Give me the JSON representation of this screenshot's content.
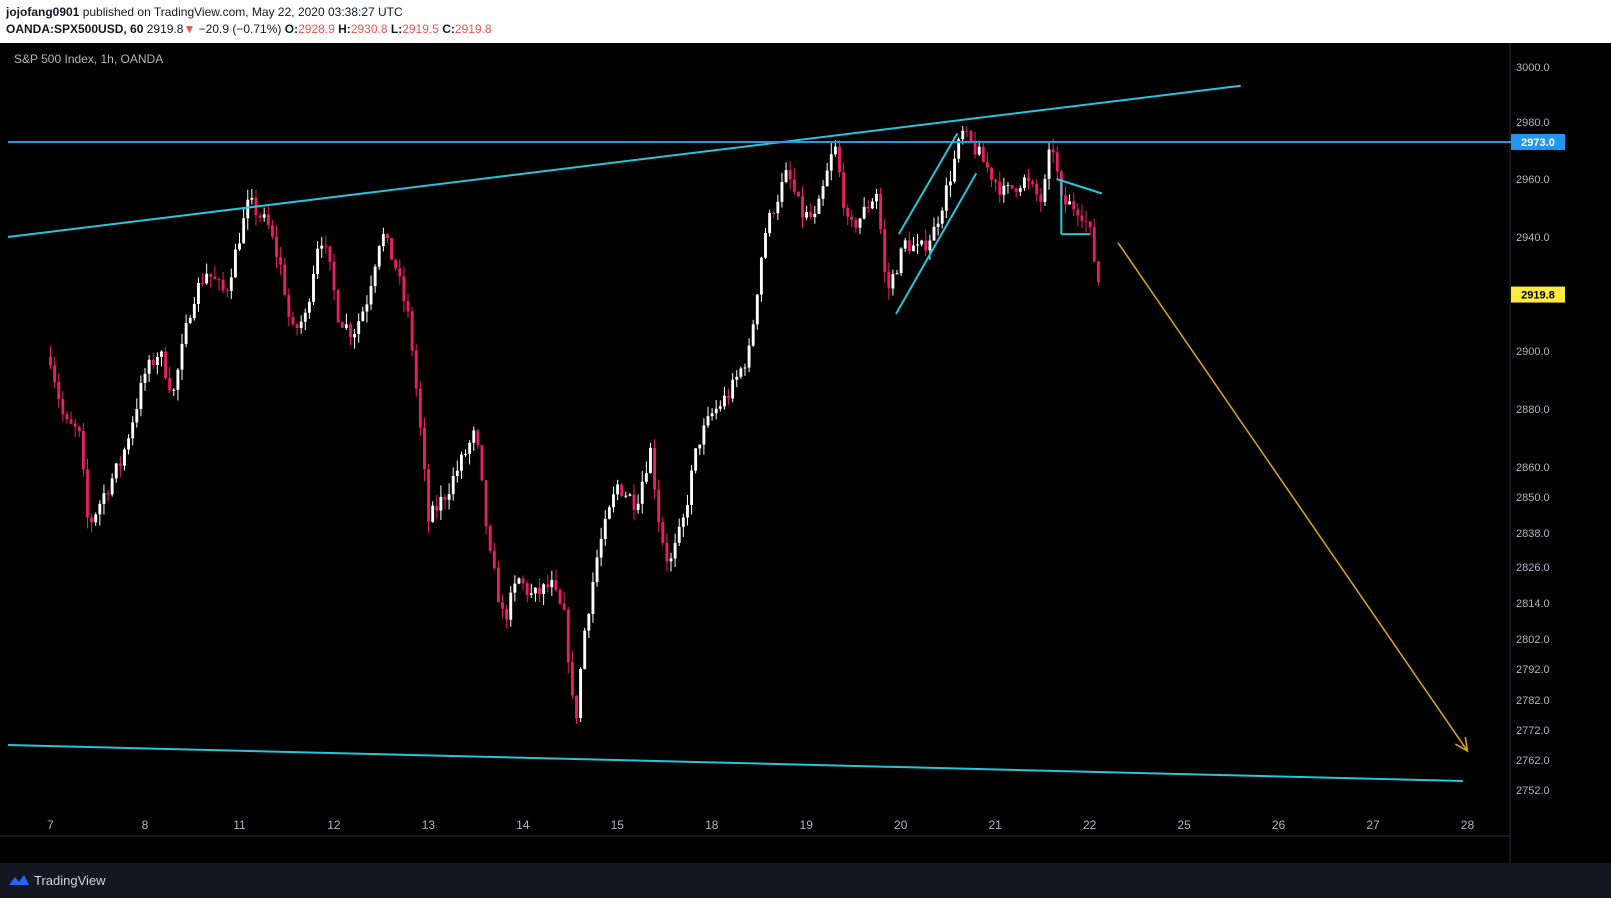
{
  "header": {
    "author": "jojofang0901",
    "published_text": "published on TradingView.com, May 22, 2020 03:38:27 UTC",
    "symbol": "OANDA:SPX500USD, 60",
    "last_price": "2919.8",
    "change_arrow": "▼",
    "change": "−20.9 (−0.71%)",
    "open_label": "O:",
    "open": "2928.9",
    "high_label": "H:",
    "high": "2930.8",
    "low_label": "L:",
    "low": "2919.5",
    "close_label": "C:",
    "close": "2919.8"
  },
  "footer": {
    "brand": "TradingView",
    "logo_icon": "tradingview-logo-icon"
  },
  "chart_data": {
    "type": "candlestick",
    "title": "S&P 500 Index, 1h, OANDA",
    "y_ticks": [
      3000.0,
      2980.0,
      2960.0,
      2940.0,
      2900.0,
      2880.0,
      2860.0,
      2850.0,
      2838.0,
      2826.0,
      2814.0,
      2802.0,
      2792.0,
      2782.0,
      2772.0,
      2762.0,
      2752.0
    ],
    "y_tick_labels": [
      "3000.0",
      "2980.0",
      "2960.0",
      "2940.0",
      "2900.0",
      "2880.0",
      "2860.0",
      "2850.0",
      "2838.0",
      "2826.0",
      "2814.0",
      "2802.0",
      "2792.0",
      "2782.0",
      "2772.0",
      "2762.0",
      "2752.0"
    ],
    "x_ticks": [
      0,
      1,
      2,
      3,
      4,
      5,
      6,
      7,
      8,
      9,
      10,
      11,
      12,
      13,
      14,
      15
    ],
    "x_tick_labels": [
      "7",
      "8",
      "11",
      "12",
      "13",
      "14",
      "15",
      "18",
      "19",
      "20",
      "21",
      "22",
      "25",
      "26",
      "27",
      "28"
    ],
    "xlim": [
      -0.45,
      15.45
    ],
    "price_marks": [
      {
        "value": 2973.0,
        "label": "2973.0",
        "color": "#2196f3",
        "text_color": "#ffffff"
      },
      {
        "value": 2919.8,
        "label": "2919.8",
        "color": "#ffeb3b",
        "text_color": "#000000"
      }
    ],
    "key_points": [
      {
        "x": 0.0,
        "y": 2898
      },
      {
        "x": 0.05,
        "y": 2890
      },
      {
        "x": 0.15,
        "y": 2875
      },
      {
        "x": 0.3,
        "y": 2872
      },
      {
        "x": 0.4,
        "y": 2840
      },
      {
        "x": 0.55,
        "y": 2850
      },
      {
        "x": 0.75,
        "y": 2862
      },
      {
        "x": 1.0,
        "y": 2892
      },
      {
        "x": 1.15,
        "y": 2900
      },
      {
        "x": 1.3,
        "y": 2885
      },
      {
        "x": 1.5,
        "y": 2918
      },
      {
        "x": 1.65,
        "y": 2928
      },
      {
        "x": 1.85,
        "y": 2920
      },
      {
        "x": 2.0,
        "y": 2940
      },
      {
        "x": 2.1,
        "y": 2952
      },
      {
        "x": 2.3,
        "y": 2944
      },
      {
        "x": 2.45,
        "y": 2928
      },
      {
        "x": 2.55,
        "y": 2906
      },
      {
        "x": 2.7,
        "y": 2912
      },
      {
        "x": 2.85,
        "y": 2942
      },
      {
        "x": 2.95,
        "y": 2930
      },
      {
        "x": 3.05,
        "y": 2912
      },
      {
        "x": 3.2,
        "y": 2906
      },
      {
        "x": 3.35,
        "y": 2918
      },
      {
        "x": 3.5,
        "y": 2942
      },
      {
        "x": 3.65,
        "y": 2930
      },
      {
        "x": 3.8,
        "y": 2910
      },
      {
        "x": 3.9,
        "y": 2878
      },
      {
        "x": 4.0,
        "y": 2842
      },
      {
        "x": 4.2,
        "y": 2852
      },
      {
        "x": 4.35,
        "y": 2862
      },
      {
        "x": 4.5,
        "y": 2872
      },
      {
        "x": 4.65,
        "y": 2830
      },
      {
        "x": 4.8,
        "y": 2808
      },
      {
        "x": 4.95,
        "y": 2822
      },
      {
        "x": 5.1,
        "y": 2816
      },
      {
        "x": 5.3,
        "y": 2820
      },
      {
        "x": 5.45,
        "y": 2808
      },
      {
        "x": 5.55,
        "y": 2772
      },
      {
        "x": 5.65,
        "y": 2804
      },
      {
        "x": 5.8,
        "y": 2832
      },
      {
        "x": 6.0,
        "y": 2854
      },
      {
        "x": 6.2,
        "y": 2848
      },
      {
        "x": 6.35,
        "y": 2866
      },
      {
        "x": 6.45,
        "y": 2840
      },
      {
        "x": 6.55,
        "y": 2826
      },
      {
        "x": 6.7,
        "y": 2842
      },
      {
        "x": 6.85,
        "y": 2868
      },
      {
        "x": 7.0,
        "y": 2878
      },
      {
        "x": 7.2,
        "y": 2886
      },
      {
        "x": 7.4,
        "y": 2900
      },
      {
        "x": 7.55,
        "y": 2940
      },
      {
        "x": 7.65,
        "y": 2950
      },
      {
        "x": 7.8,
        "y": 2962
      },
      {
        "x": 7.95,
        "y": 2948
      },
      {
        "x": 8.1,
        "y": 2946
      },
      {
        "x": 8.3,
        "y": 2972
      },
      {
        "x": 8.45,
        "y": 2942
      },
      {
        "x": 8.6,
        "y": 2948
      },
      {
        "x": 8.75,
        "y": 2956
      },
      {
        "x": 8.85,
        "y": 2920
      },
      {
        "x": 9.05,
        "y": 2938
      },
      {
        "x": 9.2,
        "y": 2935
      },
      {
        "x": 9.35,
        "y": 2942
      },
      {
        "x": 9.5,
        "y": 2958
      },
      {
        "x": 9.65,
        "y": 2976
      },
      {
        "x": 9.8,
        "y": 2970
      },
      {
        "x": 9.95,
        "y": 2962
      },
      {
        "x": 10.1,
        "y": 2955
      },
      {
        "x": 10.3,
        "y": 2960
      },
      {
        "x": 10.5,
        "y": 2952
      },
      {
        "x": 10.6,
        "y": 2974
      },
      {
        "x": 10.7,
        "y": 2952
      },
      {
        "x": 10.9,
        "y": 2950
      },
      {
        "x": 11.0,
        "y": 2942
      },
      {
        "x": 11.05,
        "y": 2932
      },
      {
        "x": 11.12,
        "y": 2920
      }
    ],
    "trendlines": [
      {
        "x1": -0.45,
        "y1": 2940.0,
        "x2": 12.6,
        "y2": 2993.2,
        "color": "#26c6da"
      },
      {
        "x1": -0.45,
        "y1": 2973.0,
        "x2": 15.5,
        "y2": 2973.0,
        "color": "#2196f3"
      },
      {
        "x1": -0.45,
        "y1": 2767.0,
        "x2": 14.95,
        "y2": 2755.0,
        "color": "#26c6da"
      },
      {
        "x1": 8.98,
        "y1": 2941.0,
        "x2": 9.6,
        "y2": 2976.0,
        "color": "#26c6da"
      },
      {
        "x1": 8.95,
        "y1": 2913.0,
        "x2": 9.8,
        "y2": 2962.0,
        "color": "#26c6da"
      },
      {
        "x1": 10.65,
        "y1": 2960.0,
        "x2": 11.13,
        "y2": 2955.0,
        "color": "#26c6da"
      },
      {
        "x1": 10.7,
        "y1": 2941.0,
        "x2": 11.0,
        "y2": 2941.0,
        "color": "#26c6da"
      },
      {
        "x1": 10.7,
        "y1": 2960.0,
        "x2": 10.7,
        "y2": 2941.0,
        "color": "#26c6da"
      }
    ],
    "projection_arrow": {
      "x1": 11.3,
      "y1": 2938.0,
      "x2": 15.0,
      "y2": 2765.0,
      "color": "#d4a017"
    },
    "candle_colors": {
      "up": "#ffffff",
      "down": "#e91e63"
    },
    "grid": false,
    "background": "#000000"
  }
}
